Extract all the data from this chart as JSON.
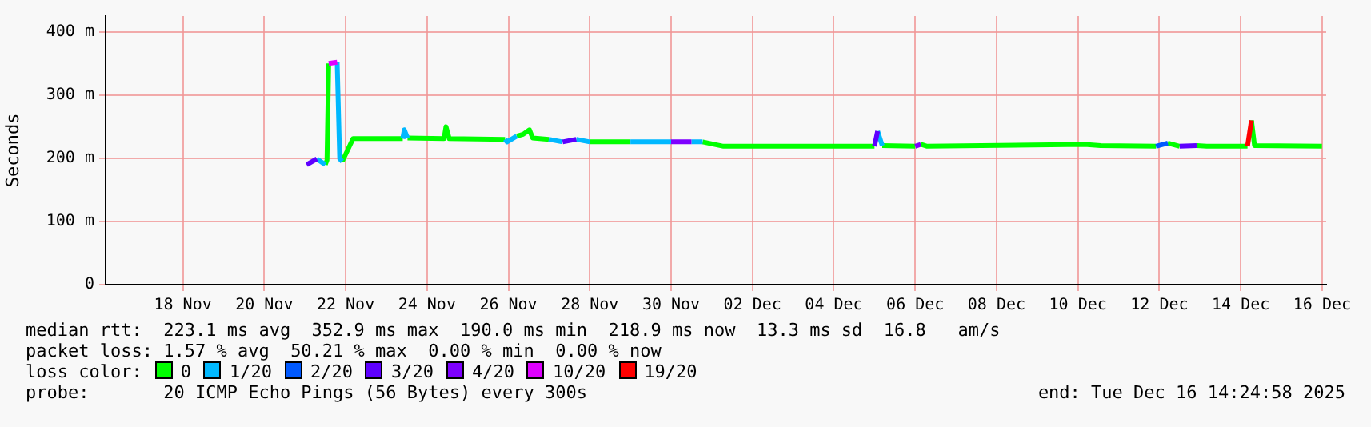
{
  "chart_data": {
    "type": "line",
    "ylabel": "Seconds",
    "legend_title": "loss color:",
    "legend": "bottom",
    "grid": true,
    "line_style": "solid",
    "xlim": [
      "2025-11-16T14:25",
      "2025-12-16T14:25"
    ],
    "xticks": [
      {
        "value": "2025-11-18T12:00",
        "label": "18 Nov"
      },
      {
        "value": "2025-11-20T12:00",
        "label": "20 Nov"
      },
      {
        "value": "2025-11-22T12:00",
        "label": "22 Nov"
      },
      {
        "value": "2025-11-24T12:00",
        "label": "24 Nov"
      },
      {
        "value": "2025-11-26T12:00",
        "label": "26 Nov"
      },
      {
        "value": "2025-11-28T12:00",
        "label": "28 Nov"
      },
      {
        "value": "2025-11-30T12:00",
        "label": "30 Nov"
      },
      {
        "value": "2025-12-02T12:00",
        "label": "02 Dec"
      },
      {
        "value": "2025-12-04T12:00",
        "label": "04 Dec"
      },
      {
        "value": "2025-12-06T12:00",
        "label": "06 Dec"
      },
      {
        "value": "2025-12-08T12:00",
        "label": "08 Dec"
      },
      {
        "value": "2025-12-10T12:00",
        "label": "10 Dec"
      },
      {
        "value": "2025-12-12T12:00",
        "label": "12 Dec"
      },
      {
        "value": "2025-12-14T12:00",
        "label": "14 Dec"
      },
      {
        "value": "2025-12-16T12:00",
        "label": "16 Dec"
      }
    ],
    "ylim": [
      0,
      425
    ],
    "yticks": [
      0,
      {
        "value": 100,
        "label": "100 m"
      },
      {
        "value": 200,
        "label": "200 m"
      },
      {
        "value": 300,
        "label": "300 m"
      },
      {
        "value": 400,
        "label": "400 m"
      }
    ],
    "series": [
      {
        "name": "0",
        "color": "#00ff00",
        "x": [
          "2025-11-22T00:00",
          "2025-11-22T01:00",
          "2025-11-22T02:00",
          null,
          "2025-11-22T10:00",
          "2025-11-22T14:25",
          "2025-11-22T16:20",
          "2025-11-23T21:40",
          null,
          "2025-11-24T00:30",
          "2025-11-24T22:00",
          "2025-11-24T23:10",
          "2025-11-25T01:05",
          "2025-11-26T10:00",
          null,
          "2025-11-26T16:55",
          "2025-11-26T20:40",
          "2025-11-27T00:25",
          "2025-11-27T02:20",
          "2025-11-27T11:50",
          null,
          "2025-11-28T12:00",
          "2025-11-29T12:00",
          null,
          "2025-12-01T06:35",
          "2025-12-01T18:55",
          "2025-12-05T12:00",
          null,
          "2025-12-05T16:35",
          "2025-12-06T12:00",
          null,
          "2025-12-06T15:20",
          "2025-12-06T19:05",
          "2025-12-10T15:55",
          "2025-12-11T01:20",
          "2025-12-12T10:00",
          null,
          "2025-12-12T17:00",
          "2025-12-13T00:00",
          null,
          "2025-12-13T10:00",
          "2025-12-13T16:00",
          "2025-12-14T16:00",
          null,
          "2025-12-14T18:20",
          "2025-12-14T20:10",
          "2025-12-16T11:55"
        ],
        "values": [
          190,
          197,
          350,
          null,
          195,
          220,
          231,
          231,
          null,
          232,
          231,
          250,
          231,
          230,
          null,
          235,
          238,
          245,
          232,
          230,
          null,
          226,
          226,
          null,
          226,
          219,
          219,
          null,
          220,
          219,
          null,
          222,
          219,
          222,
          220,
          219,
          null,
          224,
          219,
          null,
          220,
          219,
          219,
          null,
          260,
          220,
          219
        ]
      },
      {
        "name": "1/20",
        "color": "#00b8ff",
        "x": [
          "2025-11-21T19:00",
          "2025-11-22T00:00",
          null,
          "2025-11-22T07:00",
          "2025-11-22T08:30",
          "2025-11-22T10:00",
          null,
          "2025-11-23T21:40",
          "2025-11-23T22:35",
          "2025-11-24T00:30",
          null,
          "2025-11-26T10:00",
          "2025-11-26T11:10",
          "2025-11-26T16:55",
          null,
          "2025-11-27T11:50",
          "2025-11-27T20:00",
          null,
          "2025-11-28T04:00",
          "2025-11-28T12:00",
          null,
          "2025-11-29T12:00",
          "2025-11-30T12:00",
          null,
          "2025-12-01T00:00",
          "2025-12-01T06:35",
          null,
          "2025-12-05T13:50",
          "2025-12-05T16:35"
        ],
        "values": [
          199,
          190,
          null,
          352,
          199,
          195,
          null,
          231,
          245,
          232,
          null,
          230,
          226,
          235,
          null,
          230,
          226,
          null,
          230,
          226,
          null,
          226,
          226,
          null,
          226,
          226,
          null,
          243,
          220
        ]
      },
      {
        "name": "2/20",
        "color": "#0059ff",
        "x": [
          "2025-12-12T10:00",
          "2025-12-12T17:00"
        ],
        "values": [
          219,
          224
        ]
      },
      {
        "name": "3/20",
        "color": "#5e00ff",
        "x": [
          "2025-11-21T13:00",
          "2025-11-21T19:00",
          null,
          "2025-11-27T20:00",
          "2025-11-28T04:00",
          null,
          "2025-12-05T12:00",
          "2025-12-05T13:50",
          null,
          "2025-12-13T00:00",
          "2025-12-13T10:00"
        ],
        "values": [
          190,
          199,
          null,
          226,
          230,
          null,
          219,
          243,
          null,
          219,
          220
        ]
      },
      {
        "name": "4/20",
        "color": "#7e00ff",
        "x": [
          "2025-11-30T12:00",
          "2025-11-30T18:20",
          "2025-12-01T00:00",
          null,
          "2025-12-06T12:00",
          "2025-12-06T15:20"
        ],
        "values": [
          226,
          226,
          226,
          null,
          219,
          222
        ]
      },
      {
        "name": "10/20",
        "color": "#dd00ff",
        "x": [
          "2025-11-22T02:00",
          "2025-11-22T07:00"
        ],
        "values": [
          350,
          352
        ]
      },
      {
        "name": "19/20",
        "color": "#ff0000",
        "x": [
          "2025-12-14T16:00",
          "2025-12-14T18:20"
        ],
        "values": [
          219,
          260
        ]
      }
    ],
    "annotations": [
      "median rtt:  223.1 ms avg  352.9 ms max  190.0 ms min  218.9 ms now  13.3 ms sd  16.8   am/s",
      "packet loss: 1.57 % avg  50.21 % max  0.00 % min  0.00 % now",
      "probe:       20 ICMP Echo Pings (56 Bytes) every 300s",
      "end: Tue Dec 16 14:24:58 2025"
    ]
  }
}
